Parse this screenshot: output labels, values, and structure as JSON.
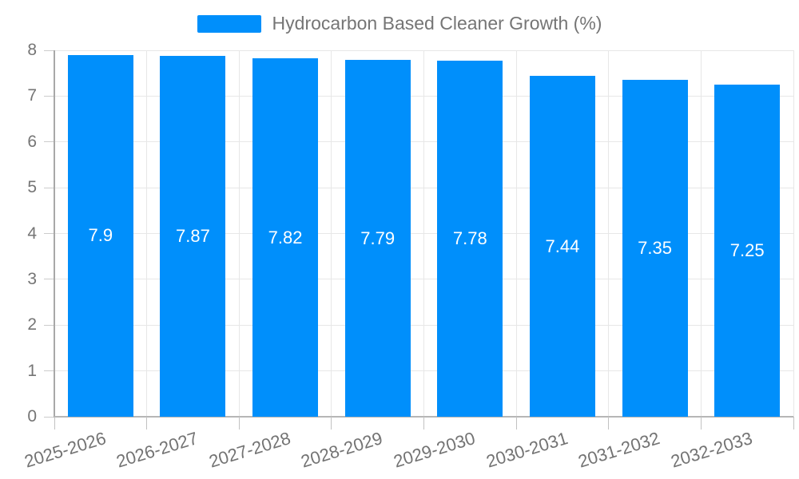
{
  "legend": {
    "label": "Hydrocarbon Based Cleaner Growth (%)",
    "swatch_color": "#008FFB",
    "position": "top"
  },
  "chart_data": {
    "type": "bar",
    "title": "Hydrocarbon Based Cleaner Growth (%)",
    "categories": [
      "2025-2026",
      "2026-2027",
      "2027-2028",
      "2028-2029",
      "2029-2030",
      "2030-2031",
      "2031-2032",
      "2032-2033"
    ],
    "values": [
      7.9,
      7.87,
      7.82,
      7.79,
      7.78,
      7.44,
      7.35,
      7.25
    ],
    "data_labels": [
      "7.9",
      "7.87",
      "7.82",
      "7.79",
      "7.78",
      "7.44",
      "7.35",
      "7.25"
    ],
    "series_name": "Hydrocarbon Based Cleaner Growth (%)",
    "xlabel": "",
    "ylabel": "",
    "ylim": [
      0,
      8
    ],
    "ytick_labels": [
      "0",
      "1",
      "2",
      "3",
      "4",
      "5",
      "6",
      "7",
      "8"
    ],
    "grid": true,
    "legend_position": "top",
    "bar_color": "#008FFB",
    "data_label_color": "#ffffff",
    "axis_label_color": "#757575",
    "grid_color": "#e7e7e7",
    "axis_line_color": "#b6b6b6"
  }
}
